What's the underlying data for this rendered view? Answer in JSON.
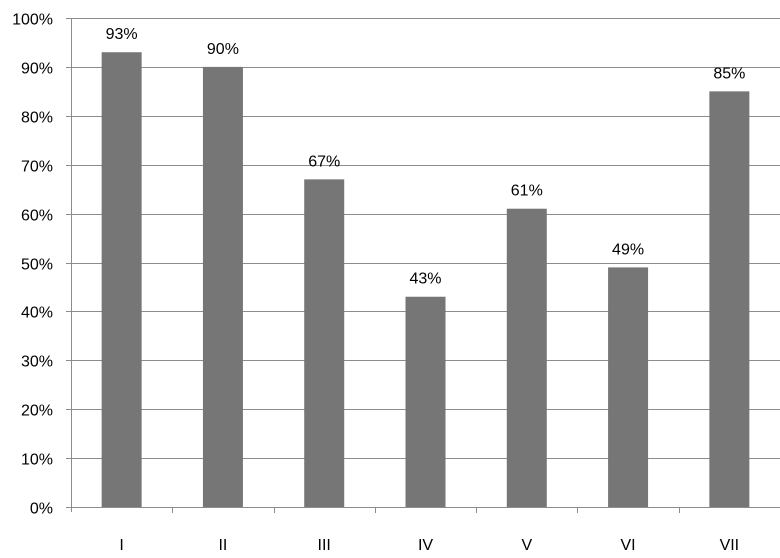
{
  "chart_data": {
    "type": "bar",
    "categories": [
      "I",
      "II",
      "III",
      "IV",
      "V",
      "VI",
      "VII"
    ],
    "values": [
      93,
      90,
      67,
      43,
      61,
      49,
      85
    ],
    "value_labels": [
      "93%",
      "90%",
      "67%",
      "43%",
      "61%",
      "49%",
      "85%"
    ],
    "y_ticks": [
      "0%",
      "10%",
      "20%",
      "30%",
      "40%",
      "50%",
      "60%",
      "70%",
      "80%",
      "90%",
      "100%"
    ],
    "ylim": [
      0,
      100
    ],
    "grid": true,
    "legend": "none",
    "bar_color": "#767676",
    "grid_color": "#8c8c8c",
    "axis_color": "#8c8c8c"
  }
}
